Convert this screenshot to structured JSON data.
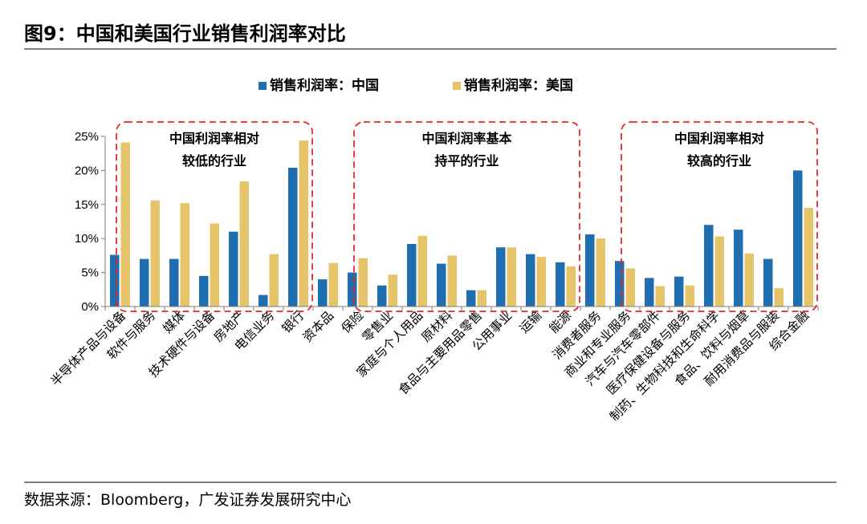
{
  "figure": {
    "title": "图9：中国和美国行业销售利润率对比",
    "source": "数据来源：Bloomberg，广发证券发展研究中心"
  },
  "colors": {
    "china": "#1f6fb0",
    "usa": "#e6c46a",
    "box": "#e8262b",
    "axis": "#7f7f7f"
  },
  "chart_data": {
    "type": "bar",
    "categories": [
      "半导体产品与设备",
      "软件与服务",
      "媒体",
      "技术硬件与设备",
      "房地产",
      "电信业务",
      "银行",
      "资本品",
      "保险",
      "零售业",
      "家庭与个人用品",
      "原材料",
      "食品与主要用品零售",
      "公用事业",
      "运输",
      "能源",
      "消费者服务",
      "商业和专业服务",
      "汽车与汽车零部件",
      "医疗保健设备与服务",
      "制药、生物科技和生命科学",
      "食品、饮料与烟草",
      "耐用消费品与服装",
      "综合金融"
    ],
    "series": [
      {
        "name": "销售利润率：中国",
        "values": [
          7.6,
          7.0,
          7.0,
          4.5,
          11.0,
          1.7,
          20.4,
          4.0,
          5.0,
          3.1,
          9.2,
          6.3,
          2.4,
          8.7,
          7.7,
          6.5,
          10.6,
          6.7,
          4.2,
          4.4,
          12.0,
          11.3,
          7.0,
          20.0
        ]
      },
      {
        "name": "销售利润率：美国",
        "values": [
          24.1,
          15.6,
          15.2,
          12.2,
          18.4,
          7.7,
          24.4,
          6.4,
          7.1,
          4.7,
          10.4,
          7.5,
          2.4,
          8.7,
          7.3,
          5.9,
          10.0,
          5.6,
          3.0,
          3.1,
          10.3,
          7.8,
          2.7,
          14.5
        ]
      }
    ],
    "yticks": [
      "0%",
      "5%",
      "10%",
      "15%",
      "20%",
      "25%"
    ],
    "ylim": [
      0,
      25
    ],
    "legend": "top-center",
    "annotations": [
      {
        "lines": [
          "中国利润率相对",
          "较低的行业"
        ],
        "from": 0,
        "to": 6
      },
      {
        "lines": [
          "中国利润率基本",
          "持平的行业"
        ],
        "from": 8,
        "to": 15
      },
      {
        "lines": [
          "中国利润率相对",
          "较高的行业"
        ],
        "from": 17,
        "to": 23
      }
    ]
  }
}
